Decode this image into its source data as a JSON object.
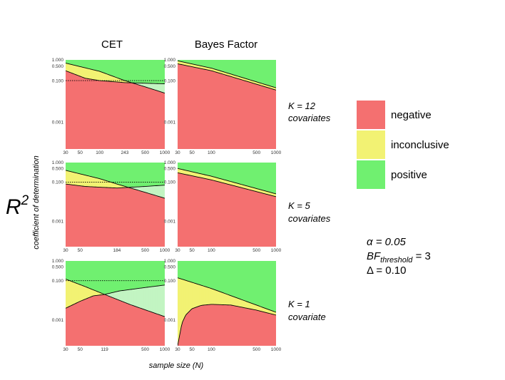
{
  "colors": {
    "negative": "#f47070",
    "inconclusive": "#f2f273",
    "positive": "#70f070",
    "positive_light": "#c2f5c2",
    "panel_bg": "#ebebeb",
    "grid": "#ffffff"
  },
  "y_axis": {
    "symbol": "R",
    "superscript": "2",
    "label": "coefficient of determination"
  },
  "x_axis_label": "sample size (N)",
  "legend": [
    {
      "key": "negative",
      "label": "negative"
    },
    {
      "key": "inconclusive",
      "label": "inconclusive"
    },
    {
      "key": "positive",
      "label": "positive"
    }
  ],
  "params": {
    "alpha": "α = 0.05",
    "bf_prefix": "BF",
    "bf_sub": "threshold",
    "bf_suffix": " = 3",
    "delta": "Δ = 0.10"
  },
  "chart_data": {
    "type": "area",
    "columns": [
      "CET",
      "Bayes Factor"
    ],
    "rows": [
      {
        "label_line1": "K = 12",
        "label_line2": "covariates"
      },
      {
        "label_line1": "K = 5",
        "label_line2": "covariates"
      },
      {
        "label_line1": "K = 1",
        "label_line2": "covariate"
      }
    ],
    "x_scale": "log",
    "xlim": [
      30,
      1000
    ],
    "y_scale": "log",
    "ylim": [
      5e-05,
      1
    ],
    "y_ticks": [
      {
        "value": 1.0,
        "label": "1.000"
      },
      {
        "value": 0.5,
        "label": "0.500"
      },
      {
        "value": 0.1,
        "label": "0.100"
      },
      {
        "value": 0.001,
        "label": "0.001"
      }
    ],
    "panels": [
      {
        "row": 0,
        "col": 0,
        "x_ticks": [
          {
            "v": 30,
            "label": "30"
          },
          {
            "v": 50,
            "label": "50"
          },
          {
            "v": 100,
            "label": "100"
          },
          {
            "v": 243,
            "label": "243"
          },
          {
            "v": 500,
            "label": "500"
          },
          {
            "v": 1000,
            "label": "1000"
          }
        ],
        "upper": [
          [
            30,
            0.7
          ],
          [
            100,
            0.28
          ],
          [
            243,
            0.1
          ],
          [
            500,
            0.05
          ],
          [
            1000,
            0.025
          ]
        ],
        "lower": [
          [
            30,
            0.3
          ],
          [
            60,
            0.13
          ],
          [
            100,
            0.1
          ],
          [
            243,
            0.08
          ],
          [
            1000,
            0.07
          ]
        ],
        "reference": 0.1
      },
      {
        "row": 0,
        "col": 1,
        "x_ticks": [
          {
            "v": 30,
            "label": "30"
          },
          {
            "v": 50,
            "label": "50"
          },
          {
            "v": 100,
            "label": "100"
          },
          {
            "v": 500,
            "label": "500"
          },
          {
            "v": 1000,
            "label": "1000"
          }
        ],
        "upper": [
          [
            30,
            0.9
          ],
          [
            100,
            0.4
          ],
          [
            1000,
            0.045
          ]
        ],
        "lower": [
          [
            30,
            0.65
          ],
          [
            100,
            0.3
          ],
          [
            1000,
            0.035
          ]
        ]
      },
      {
        "row": 1,
        "col": 0,
        "x_ticks": [
          {
            "v": 30,
            "label": "30"
          },
          {
            "v": 50,
            "label": "50"
          },
          {
            "v": 184,
            "label": "184"
          },
          {
            "v": 500,
            "label": "500"
          },
          {
            "v": 1000,
            "label": "1000"
          }
        ],
        "upper": [
          [
            30,
            0.4
          ],
          [
            100,
            0.15
          ],
          [
            184,
            0.08
          ],
          [
            500,
            0.03
          ],
          [
            1000,
            0.015
          ]
        ],
        "lower": [
          [
            30,
            0.08
          ],
          [
            60,
            0.06
          ],
          [
            100,
            0.055
          ],
          [
            184,
            0.05
          ],
          [
            500,
            0.06
          ],
          [
            1000,
            0.07
          ]
        ],
        "reference": 0.1
      },
      {
        "row": 1,
        "col": 1,
        "x_ticks": [
          {
            "v": 30,
            "label": "30"
          },
          {
            "v": 50,
            "label": "50"
          },
          {
            "v": 100,
            "label": "100"
          },
          {
            "v": 500,
            "label": "500"
          },
          {
            "v": 1000,
            "label": "1000"
          }
        ],
        "upper": [
          [
            30,
            0.5
          ],
          [
            100,
            0.2
          ],
          [
            1000,
            0.025
          ]
        ],
        "lower": [
          [
            30,
            0.3
          ],
          [
            100,
            0.13
          ],
          [
            1000,
            0.018
          ]
        ]
      },
      {
        "row": 2,
        "col": 0,
        "x_ticks": [
          {
            "v": 30,
            "label": "30"
          },
          {
            "v": 50,
            "label": "50"
          },
          {
            "v": 119,
            "label": "119"
          },
          {
            "v": 500,
            "label": "500"
          },
          {
            "v": 1000,
            "label": "1000"
          }
        ],
        "upper": [
          [
            30,
            0.12
          ],
          [
            60,
            0.05
          ],
          [
            119,
            0.02
          ],
          [
            300,
            0.006
          ],
          [
            1000,
            0.0015
          ]
        ],
        "lower": [
          [
            30,
            0.004
          ],
          [
            50,
            0.009
          ],
          [
            80,
            0.017
          ],
          [
            119,
            0.02
          ],
          [
            200,
            0.03
          ],
          [
            500,
            0.045
          ],
          [
            1000,
            0.06
          ]
        ],
        "reference": 0.1
      },
      {
        "row": 2,
        "col": 1,
        "x_ticks": [
          {
            "v": 30,
            "label": "30"
          },
          {
            "v": 50,
            "label": "50"
          },
          {
            "v": 100,
            "label": "100"
          },
          {
            "v": 500,
            "label": "500"
          },
          {
            "v": 1000,
            "label": "1000"
          }
        ],
        "upper": [
          [
            30,
            0.14
          ],
          [
            100,
            0.04
          ],
          [
            1000,
            0.0025
          ]
        ],
        "lower": [
          [
            30,
            5e-05
          ],
          [
            32,
            0.00015
          ],
          [
            35,
            0.0007
          ],
          [
            40,
            0.0018
          ],
          [
            50,
            0.0038
          ],
          [
            70,
            0.0056
          ],
          [
            100,
            0.0063
          ],
          [
            200,
            0.0058
          ],
          [
            500,
            0.0032
          ],
          [
            1000,
            0.0018
          ]
        ]
      }
    ]
  }
}
